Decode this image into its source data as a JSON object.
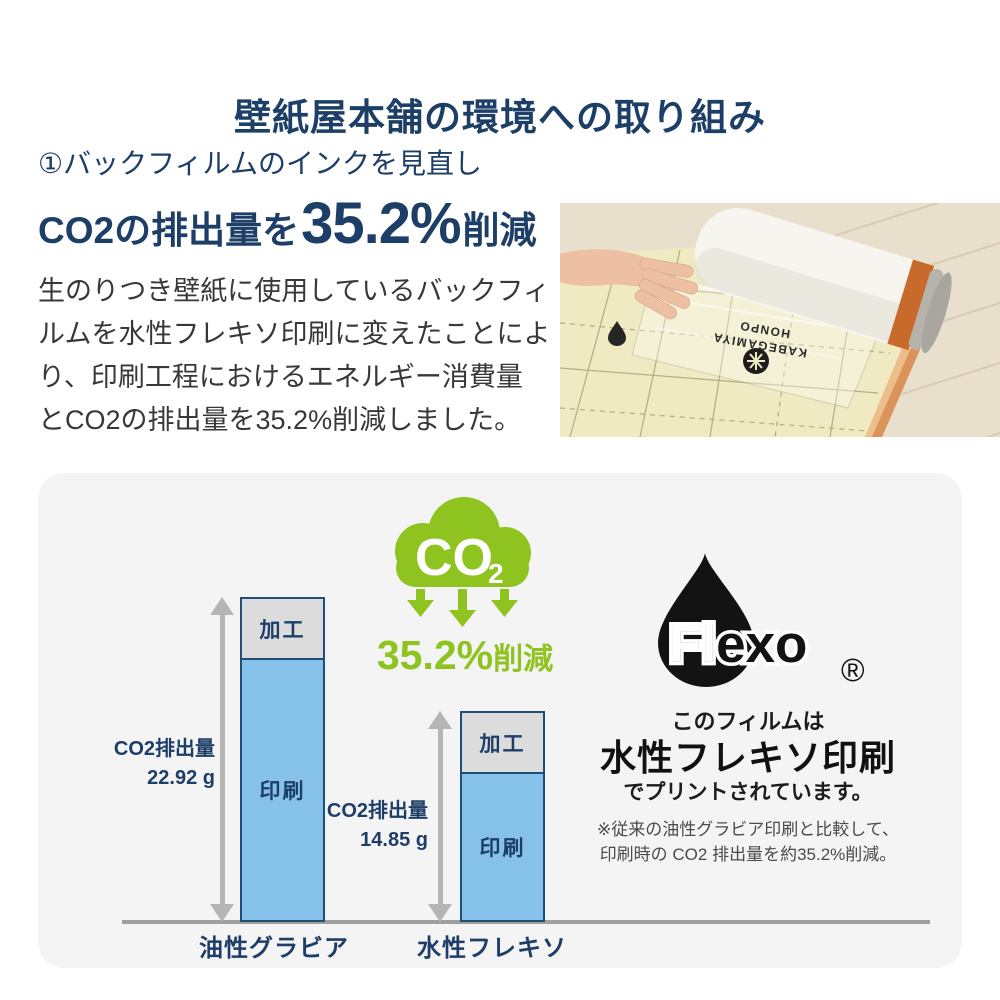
{
  "page": {
    "title": "壁紙屋本舗の環境への取り組み",
    "background": "#ffffff"
  },
  "colors": {
    "navy": "#1d3e66",
    "green": "#8fc31f",
    "bar_blue": "#85c1e8",
    "bar_gray": "#dcdcdc",
    "bar_border": "#1f4e79",
    "panel_bg": "#f4f4f5",
    "arrow_gray": "#b5b5b5",
    "axis_gray": "#9f9f9f",
    "body_text": "#383838",
    "flexo_black": "#131313"
  },
  "intro": {
    "section_heading": "①バックフィルムのインクを見直し",
    "stat_prefix": "CO2の排出量を",
    "stat_value": "35.2%",
    "stat_suffix": "削減",
    "body": "生のりつき壁紙に使用しているバックフィ\nルムを水性フレキソ印刷に変えたことによ\nり、印刷工程におけるエネルギー消費量\nとCO2の排出量を35.2%削減しました。"
  },
  "photo": {
    "film_text_line1": "KABEGAMIYA",
    "film_text_line2": "HONPO"
  },
  "chart_data": {
    "type": "bar",
    "stacked": true,
    "title": "",
    "xlabel": "",
    "ylabel": "",
    "value_unit": "g",
    "ylim": [
      0,
      24
    ],
    "grid": false,
    "legend": "none (labels inside segments)",
    "categories": [
      "油性グラビア",
      "水性フレキソ"
    ],
    "series": [
      {
        "name": "印刷",
        "color": "#85c1e8",
        "values": [
          18.62,
          10.55
        ]
      },
      {
        "name": "加工",
        "color": "#dcdcdc",
        "values": [
          4.3,
          4.3
        ]
      }
    ],
    "totals": [
      22.92,
      14.85
    ],
    "bar_total_labels": [
      {
        "title": "CO2排出量",
        "value": "22.92 g"
      },
      {
        "title": "CO2排出量",
        "value": "14.85 g"
      }
    ],
    "note": "only totals are labeled on the figure; segment split estimated from bar proportions"
  },
  "panel": {
    "cloud_text_main": "CO",
    "cloud_text_sub": "2",
    "reduction_value": "35.2%",
    "reduction_suffix": "削減",
    "flexo": {
      "brand": "Flexo",
      "brand_drop": "Fl",
      "registered": "®"
    },
    "film_line1": "このフィルムは",
    "film_line2": "水性フレキソ印刷",
    "film_line3": "でプリントされています。",
    "note_line1": "※従来の油性グラビア印刷と比較して、",
    "note_line2": "印刷時の CO2 排出量を約35.2%削減。"
  }
}
